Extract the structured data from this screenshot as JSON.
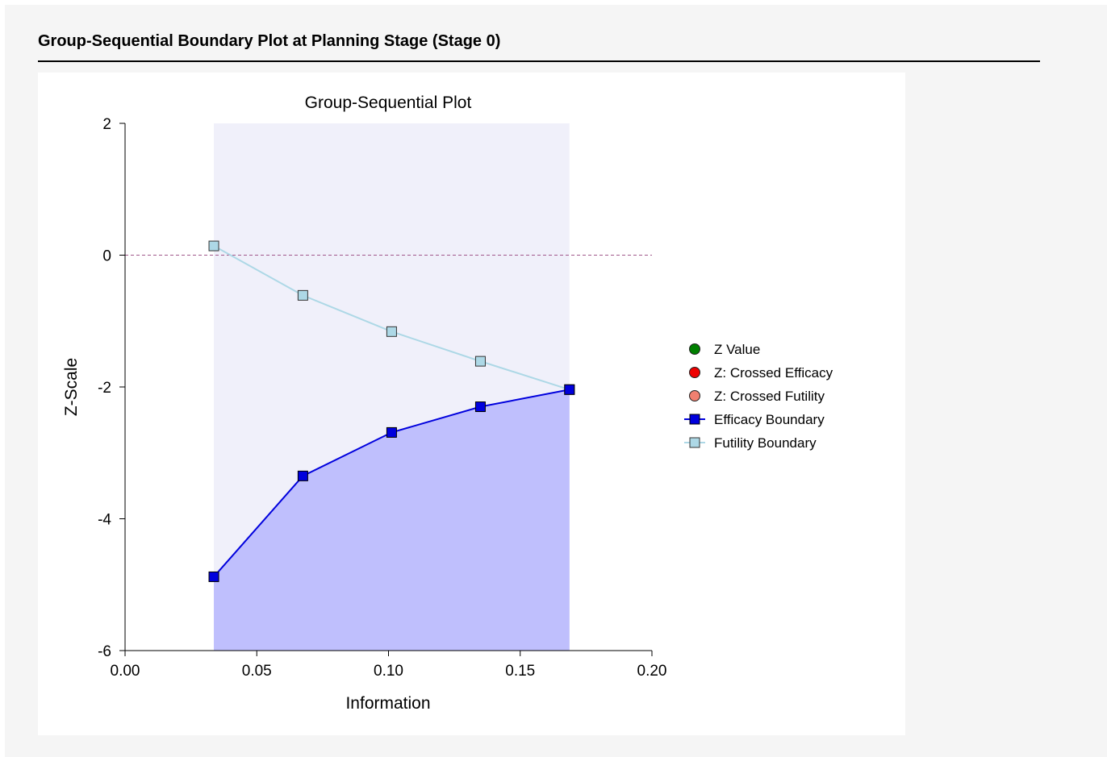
{
  "report": {
    "heading": "Group-Sequential Boundary Plot at Planning Stage (Stage 0)"
  },
  "chart_data": {
    "type": "line",
    "title": "Group-Sequential Plot",
    "xlabel": "Information",
    "ylabel": "Z-Scale",
    "xlim": [
      0.0,
      0.2
    ],
    "ylim": [
      -6,
      2
    ],
    "x_ticks": [
      0.0,
      0.05,
      0.1,
      0.15,
      0.2
    ],
    "x_tick_labels": [
      "0.00",
      "0.05",
      "0.10",
      "0.15",
      "0.20"
    ],
    "y_ticks": [
      2,
      0,
      -2,
      -4,
      -6
    ],
    "y_tick_labels": [
      "2",
      "0",
      "-2",
      "-4",
      "-6"
    ],
    "grid": false,
    "legend_position": "right",
    "reference_line": {
      "y": 0,
      "style": "dashed",
      "color": "#a0578a"
    },
    "continuation_region_color": "#f0f0fa",
    "rejection_region_color": "#bfbffd",
    "x": [
      0.0337,
      0.0675,
      0.1012,
      0.1349,
      0.1687
    ],
    "series": [
      {
        "name": "Efficacy Boundary",
        "color": "#0000dd",
        "marker": "square",
        "values": [
          -4.88,
          -3.35,
          -2.69,
          -2.3,
          -2.04
        ]
      },
      {
        "name": "Futility Boundary",
        "color": "#add8e6",
        "marker": "square",
        "values": [
          0.14,
          -0.61,
          -1.16,
          -1.61,
          -2.04
        ]
      }
    ],
    "legend": [
      {
        "label": "Z Value",
        "color": "#007f00",
        "marker": "circle"
      },
      {
        "label": "Z: Crossed Efficacy",
        "color": "#ee0000",
        "marker": "circle"
      },
      {
        "label": "Z: Crossed Futility",
        "color": "#f08070",
        "marker": "circle"
      },
      {
        "label": "Efficacy Boundary",
        "color": "#0000dd",
        "marker": "square-line"
      },
      {
        "label": "Futility Boundary",
        "color": "#add8e6",
        "marker": "square-line"
      }
    ]
  }
}
